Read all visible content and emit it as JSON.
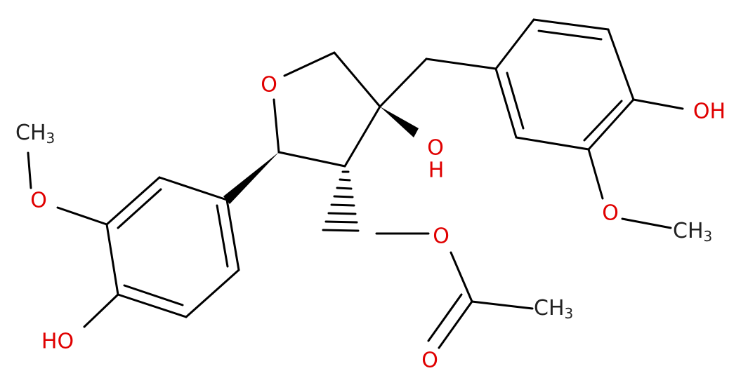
{
  "labels": [
    {
      "text": "O"
    },
    {
      "text": "O"
    },
    {
      "text": "H"
    },
    {
      "text": "OH"
    },
    {
      "text": "O"
    },
    {
      "text": "CH",
      "sub": "3"
    },
    {
      "text": "O"
    },
    {
      "text": "O"
    },
    {
      "text": "CH",
      "sub": "3"
    },
    {
      "text": "CH",
      "sub": "3"
    },
    {
      "text": "O"
    },
    {
      "text": "HO"
    }
  ]
}
